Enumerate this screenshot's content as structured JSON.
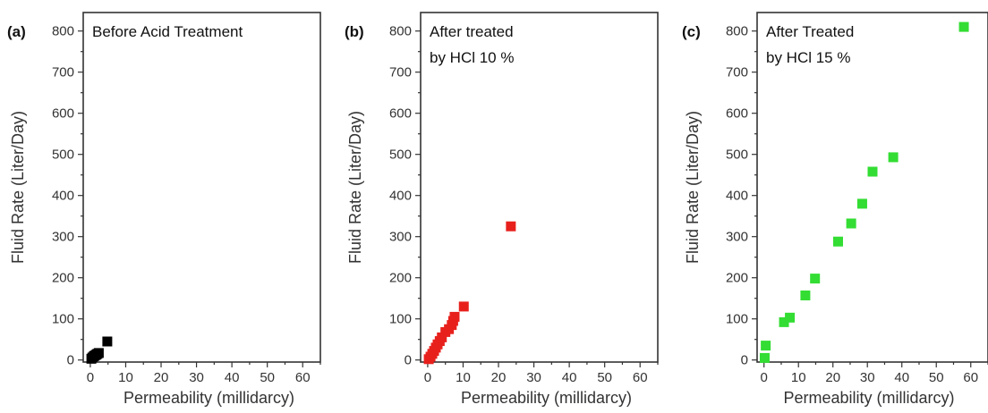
{
  "chart_data": [
    {
      "type": "scatter",
      "panel_label": "(a)",
      "annotation_lines": [
        "Before Acid Treatment"
      ],
      "xlabel": "Permeability (millidarcy)",
      "ylabel": "Fluid Rate (Liter/Day)",
      "xlim": [
        -2,
        65
      ],
      "ylim": [
        -5,
        845
      ],
      "xticks": [
        0,
        10,
        20,
        30,
        40,
        50,
        60
      ],
      "yticks": [
        0,
        100,
        200,
        300,
        400,
        500,
        600,
        700,
        800
      ],
      "xtick_labels": [
        "0",
        "10",
        "20",
        "30",
        "40",
        "50",
        "60"
      ],
      "ytick_labels": [
        "0",
        "100",
        "200",
        "300",
        "400",
        "500",
        "600",
        "700",
        "800"
      ],
      "marker_color": "#000000",
      "marker": "square",
      "series": [
        {
          "x": [
            0.3,
            0.6,
            1.0,
            1.3,
            1.7,
            2.0,
            2.4,
            4.8
          ],
          "y": [
            3,
            6,
            9,
            11,
            13,
            15,
            17,
            45
          ]
        }
      ]
    },
    {
      "type": "scatter",
      "panel_label": "(b)",
      "annotation_lines": [
        "After treated",
        "by HCl 10 %"
      ],
      "xlabel": "Permeability (millidarcy)",
      "ylabel": "Fluid Rate (Liter/Day)",
      "xlim": [
        -2,
        65
      ],
      "ylim": [
        -5,
        845
      ],
      "xticks": [
        0,
        10,
        20,
        30,
        40,
        50,
        60
      ],
      "yticks": [
        0,
        100,
        200,
        300,
        400,
        500,
        600,
        700,
        800
      ],
      "xtick_labels": [
        "0",
        "10",
        "20",
        "30",
        "40",
        "50",
        "60"
      ],
      "ytick_labels": [
        "0",
        "100",
        "200",
        "300",
        "400",
        "500",
        "600",
        "700",
        "800"
      ],
      "marker_color": "#e8201c",
      "marker": "square",
      "series": [
        {
          "x": [
            0.3,
            0.8,
            1.3,
            1.8,
            2.3,
            2.8,
            3.4,
            4.0,
            5.0,
            6.0,
            6.8,
            7.2,
            7.6,
            10.2,
            23.5
          ],
          "y": [
            2,
            8,
            15,
            22,
            30,
            38,
            46,
            55,
            68,
            75,
            85,
            95,
            105,
            130,
            325
          ]
        }
      ]
    },
    {
      "type": "scatter",
      "panel_label": "(c)",
      "annotation_lines": [
        "After Treated",
        "by HCl 15 %"
      ],
      "xlabel": "Permeability (millidarcy)",
      "ylabel": "Fluid Rate (Liter/Day)",
      "xlim": [
        -2,
        65
      ],
      "ylim": [
        -5,
        845
      ],
      "xticks": [
        0,
        10,
        20,
        30,
        40,
        50,
        60
      ],
      "yticks": [
        0,
        100,
        200,
        300,
        400,
        500,
        600,
        700,
        800
      ],
      "xtick_labels": [
        "0",
        "10",
        "20",
        "30",
        "40",
        "50",
        "60"
      ],
      "ytick_labels": [
        "0",
        "100",
        "200",
        "300",
        "400",
        "500",
        "600",
        "700",
        "800"
      ],
      "marker_color": "#33dd33",
      "marker": "square",
      "series": [
        {
          "x": [
            0.2,
            0.5,
            5.8,
            7.5,
            12.0,
            14.8,
            21.5,
            25.3,
            28.5,
            31.5,
            37.5,
            58.0
          ],
          "y": [
            5,
            35,
            92,
            103,
            157,
            198,
            288,
            332,
            380,
            458,
            493,
            810
          ]
        }
      ]
    }
  ]
}
